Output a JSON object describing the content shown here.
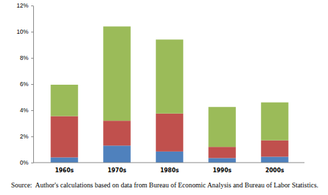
{
  "chart_data": {
    "type": "bar",
    "stacked": true,
    "grid": false,
    "categories": [
      "1960s",
      "1970s",
      "1980s",
      "1990s",
      "2000s"
    ],
    "series": [
      {
        "color": "#4f81bd",
        "values": [
          0.4,
          1.3,
          0.85,
          0.35,
          0.45
        ]
      },
      {
        "color": "#c0504d",
        "values": [
          3.15,
          1.9,
          2.9,
          0.85,
          1.25
        ]
      },
      {
        "color": "#9bbb59",
        "values": [
          2.4,
          7.2,
          5.65,
          3.05,
          2.9
        ]
      }
    ],
    "ylim": [
      0,
      12
    ],
    "yticks": [
      {
        "value": 0,
        "label": "0%"
      },
      {
        "value": 2,
        "label": "2%"
      },
      {
        "value": 4,
        "label": "4%"
      },
      {
        "value": 6,
        "label": "6%"
      },
      {
        "value": 8,
        "label": "8%"
      },
      {
        "value": 10,
        "label": "10%"
      },
      {
        "value": 12,
        "label": "12%"
      }
    ],
    "source": "Source:  Author's calculations based on data from Bureau of Economic Analysis and Bureau of Labor Statistics."
  }
}
